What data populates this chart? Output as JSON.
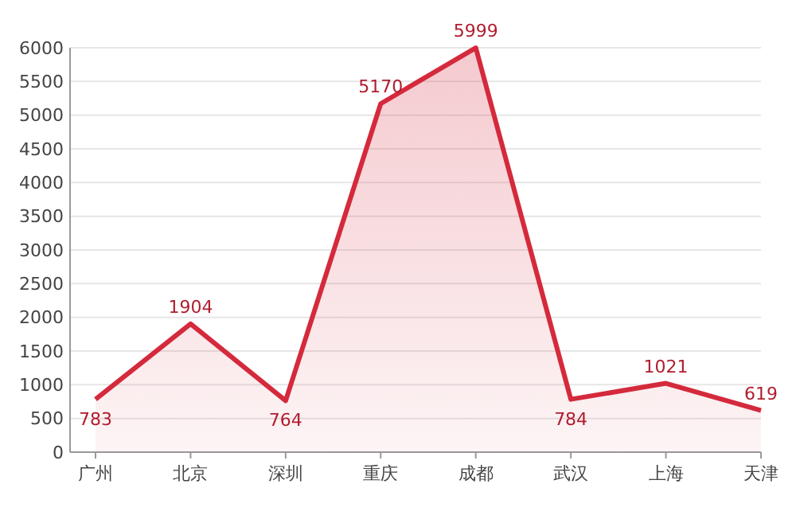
{
  "chart_data": {
    "type": "area",
    "categories": [
      "广州",
      "北京",
      "深圳",
      "重庆",
      "成都",
      "武汉",
      "上海",
      "天津"
    ],
    "values": [
      783,
      1904,
      764,
      5170,
      5999,
      784,
      1021,
      619
    ],
    "color": "#d42a3c",
    "ylim": [
      0,
      6000
    ],
    "yticks": [
      0,
      500,
      1000,
      1500,
      2000,
      2500,
      3000,
      3500,
      4000,
      4500,
      5000,
      5500,
      6000
    ],
    "grid": "y",
    "data_labels": true
  }
}
